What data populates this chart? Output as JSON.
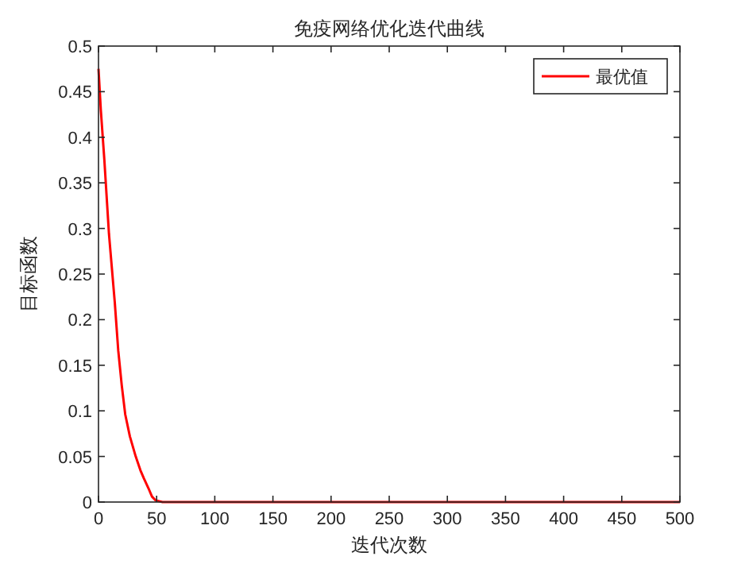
{
  "chart_data": {
    "type": "line",
    "title": "免疫网络优化迭代曲线",
    "xlabel": "迭代次数",
    "ylabel": "目标函数",
    "x": [
      0,
      2,
      5,
      9,
      14,
      17,
      20,
      23,
      27,
      32,
      36,
      39,
      43,
      46,
      49,
      52,
      55,
      60,
      100,
      200,
      300,
      400,
      500
    ],
    "series": [
      {
        "name": "最优值",
        "color": "#ff0000",
        "values": [
          0.475,
          0.43,
          0.376,
          0.294,
          0.219,
          0.166,
          0.128,
          0.096,
          0.072,
          0.05,
          0.035,
          0.026,
          0.015,
          0.006,
          0.002,
          0.001,
          0,
          0,
          0,
          0,
          0,
          0,
          0
        ]
      }
    ],
    "xlim": [
      0,
      500
    ],
    "xticks": [
      0,
      50,
      100,
      150,
      200,
      250,
      300,
      350,
      400,
      450,
      500
    ],
    "ylim": [
      0,
      0.5
    ],
    "yticks": [
      0,
      0.05,
      0.1,
      0.15,
      0.2,
      0.25,
      0.3,
      0.35,
      0.4,
      0.45,
      0.5
    ],
    "grid": false,
    "legend": "top right",
    "marker": "none",
    "line_style": "solid"
  }
}
